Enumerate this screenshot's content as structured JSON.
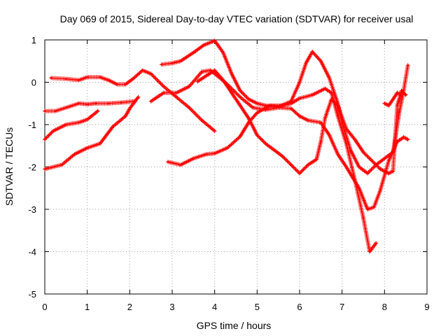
{
  "chart_data": {
    "type": "scatter",
    "title": "Day 069 of 2015, Sidereal Day-to-day VTEC variation (SDTVAR) for receiver usal",
    "xlabel": "GPS time / hours",
    "ylabel": "SDTVAR / TECUs",
    "xlim": [
      0,
      9
    ],
    "ylim": [
      -5,
      1
    ],
    "xticks": [
      0,
      1,
      2,
      3,
      4,
      5,
      6,
      7,
      8,
      9
    ],
    "yticks": [
      -5,
      -4,
      -3,
      -2,
      -1,
      0,
      1
    ],
    "grid": true,
    "marker": "+",
    "series_color": "#ff0000",
    "series": [
      {
        "points": [
          [
            0.15,
            0.1
          ],
          [
            0.5,
            0.08
          ],
          [
            0.8,
            0.05
          ],
          [
            1.0,
            0.12
          ],
          [
            1.3,
            0.12
          ],
          [
            1.5,
            0.05
          ],
          [
            1.7,
            -0.05
          ],
          [
            1.9,
            -0.05
          ],
          [
            2.1,
            0.1
          ],
          [
            2.3,
            0.28
          ],
          [
            2.5,
            0.2
          ],
          [
            2.8,
            -0.1
          ],
          [
            3.1,
            -0.35
          ],
          [
            3.4,
            -0.6
          ],
          [
            3.7,
            -0.9
          ],
          [
            4.0,
            -1.15
          ]
        ]
      },
      {
        "points": [
          [
            0.0,
            -0.68
          ],
          [
            0.25,
            -0.68
          ],
          [
            0.5,
            -0.6
          ],
          [
            0.8,
            -0.5
          ],
          [
            1.0,
            -0.52
          ],
          [
            1.2,
            -0.5
          ],
          [
            1.5,
            -0.5
          ],
          [
            1.8,
            -0.48
          ],
          [
            2.1,
            -0.45
          ]
        ]
      },
      {
        "points": [
          [
            0.0,
            -1.35
          ],
          [
            0.2,
            -1.15
          ],
          [
            0.5,
            -1.0
          ],
          [
            0.8,
            -0.95
          ],
          [
            1.0,
            -0.88
          ],
          [
            1.2,
            -0.72
          ],
          [
            1.25,
            -0.68
          ]
        ]
      },
      {
        "points": [
          [
            0.0,
            -2.05
          ],
          [
            0.4,
            -1.95
          ],
          [
            0.7,
            -1.7
          ],
          [
            1.0,
            -1.55
          ],
          [
            1.3,
            -1.45
          ],
          [
            1.6,
            -1.05
          ],
          [
            1.9,
            -0.8
          ],
          [
            2.0,
            -0.62
          ],
          [
            2.2,
            -0.35
          ]
        ]
      },
      {
        "points": [
          [
            2.5,
            -0.45
          ],
          [
            2.8,
            -0.25
          ],
          [
            3.1,
            -0.25
          ],
          [
            3.4,
            -0.1
          ],
          [
            3.7,
            0.25
          ],
          [
            3.9,
            0.28
          ],
          [
            4.1,
            0.12
          ],
          [
            4.3,
            -0.05
          ],
          [
            4.6,
            -0.35
          ],
          [
            4.9,
            -0.6
          ],
          [
            5.2,
            -0.65
          ],
          [
            5.5,
            -0.6
          ],
          [
            5.8,
            -0.62
          ],
          [
            6.0,
            -0.8
          ],
          [
            6.2,
            -0.9
          ],
          [
            6.5,
            -0.95
          ],
          [
            6.7,
            -1.25
          ],
          [
            6.9,
            -1.7
          ],
          [
            7.1,
            -2.0
          ],
          [
            7.4,
            -2.5
          ],
          [
            7.6,
            -3.0
          ],
          [
            7.75,
            -2.95
          ],
          [
            7.9,
            -2.55
          ],
          [
            8.1,
            -1.85
          ],
          [
            8.3,
            -1.4
          ],
          [
            8.45,
            -1.3
          ],
          [
            8.55,
            -1.35
          ]
        ]
      },
      {
        "points": [
          [
            2.75,
            0.42
          ],
          [
            3.0,
            0.45
          ],
          [
            3.2,
            0.5
          ],
          [
            3.5,
            0.7
          ],
          [
            3.75,
            0.88
          ],
          [
            4.0,
            0.98
          ],
          [
            4.2,
            0.7
          ],
          [
            4.4,
            0.2
          ],
          [
            4.6,
            -0.2
          ],
          [
            4.8,
            -0.4
          ],
          [
            5.0,
            -0.5
          ],
          [
            5.2,
            -0.55
          ],
          [
            5.5,
            -0.58
          ],
          [
            5.8,
            -0.45
          ],
          [
            6.0,
            0.0
          ],
          [
            6.15,
            0.45
          ],
          [
            6.3,
            0.72
          ],
          [
            6.5,
            0.5
          ],
          [
            6.7,
            0.1
          ],
          [
            6.9,
            -0.5
          ],
          [
            7.0,
            -0.95
          ],
          [
            7.2,
            -1.6
          ],
          [
            7.4,
            -2.0
          ],
          [
            7.6,
            -2.15
          ],
          [
            7.8,
            -1.95
          ],
          [
            8.0,
            -1.8
          ],
          [
            8.2,
            -1.65
          ],
          [
            8.35,
            -0.7
          ],
          [
            8.45,
            -0.2
          ],
          [
            8.55,
            0.4
          ]
        ]
      },
      {
        "points": [
          [
            2.9,
            -1.88
          ],
          [
            3.2,
            -1.95
          ],
          [
            3.5,
            -1.8
          ],
          [
            3.8,
            -1.7
          ],
          [
            4.0,
            -1.68
          ],
          [
            4.3,
            -1.55
          ],
          [
            4.6,
            -1.28
          ],
          [
            4.8,
            -0.95
          ],
          [
            5.0,
            -0.72
          ],
          [
            5.3,
            -0.55
          ],
          [
            5.6,
            -0.55
          ],
          [
            5.8,
            -0.5
          ],
          [
            6.0,
            -0.38
          ],
          [
            6.3,
            -0.3
          ],
          [
            6.6,
            -0.15
          ],
          [
            6.75,
            -0.25
          ],
          [
            6.9,
            -0.8
          ],
          [
            7.1,
            -1.45
          ],
          [
            7.3,
            -2.3
          ],
          [
            7.5,
            -3.2
          ],
          [
            7.65,
            -4.0
          ],
          [
            7.8,
            -3.8
          ]
        ]
      },
      {
        "points": [
          [
            3.6,
            0.02
          ],
          [
            3.8,
            0.15
          ],
          [
            4.0,
            0.28
          ],
          [
            4.2,
            0.05
          ],
          [
            4.4,
            -0.25
          ],
          [
            4.6,
            -0.55
          ],
          [
            4.8,
            -0.85
          ],
          [
            5.0,
            -1.25
          ],
          [
            5.2,
            -1.45
          ],
          [
            5.4,
            -1.6
          ],
          [
            5.6,
            -1.75
          ],
          [
            5.8,
            -1.95
          ],
          [
            6.0,
            -2.15
          ],
          [
            6.2,
            -1.95
          ],
          [
            6.4,
            -1.82
          ],
          [
            6.5,
            -1.4
          ],
          [
            6.6,
            -0.85
          ],
          [
            6.75,
            -0.4
          ],
          [
            6.9,
            -0.55
          ],
          [
            7.1,
            -1.1
          ],
          [
            7.3,
            -1.35
          ],
          [
            7.5,
            -1.65
          ],
          [
            7.7,
            -1.85
          ],
          [
            7.9,
            -2.05
          ],
          [
            8.0,
            -2.1
          ],
          [
            8.1,
            -2.15
          ],
          [
            8.2,
            -2.1
          ],
          [
            8.3,
            -0.55
          ],
          [
            8.4,
            -0.2
          ],
          [
            8.5,
            -0.3
          ]
        ]
      },
      {
        "points": [
          [
            8.0,
            -0.5
          ],
          [
            8.1,
            -0.55
          ],
          [
            8.2,
            -0.4
          ],
          [
            8.3,
            -0.25
          ],
          [
            8.4,
            -0.3
          ]
        ]
      }
    ]
  }
}
